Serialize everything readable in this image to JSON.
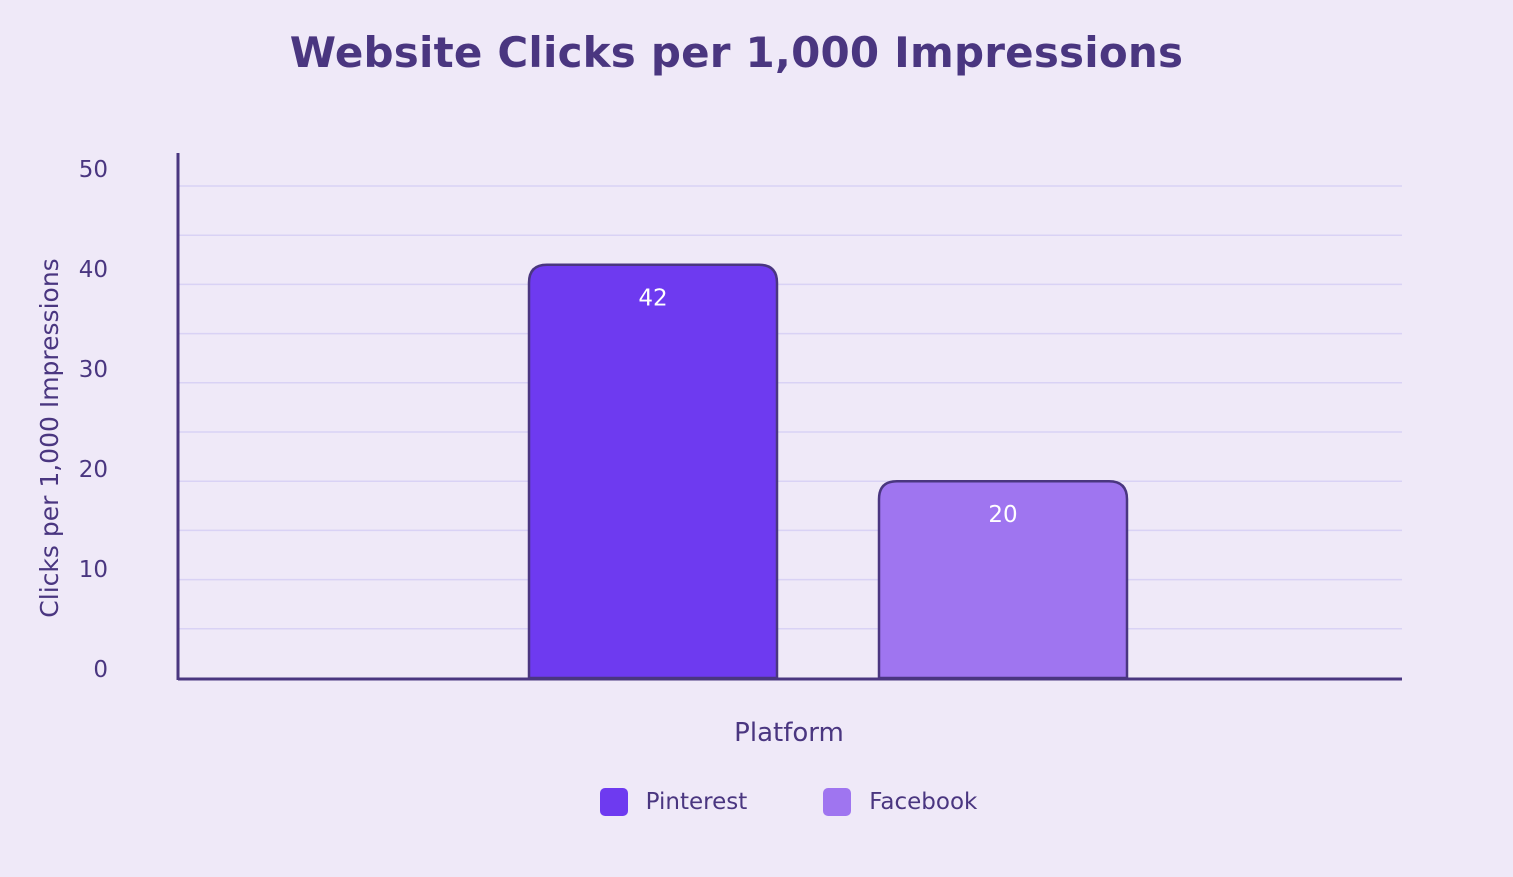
{
  "chart_data": {
    "type": "bar",
    "title": "Website Clicks per 1,000 Impressions",
    "xlabel": "Platform",
    "ylabel": "Clicks per 1,000 Impressions",
    "categories": [
      "Pinterest",
      "Facebook"
    ],
    "series": [
      {
        "values": [
          42,
          20
        ]
      }
    ],
    "data_labels": [
      "42",
      "20"
    ],
    "ylim": [
      0,
      50
    ],
    "y_ticks": [
      0,
      10,
      20,
      30,
      40,
      50
    ],
    "y_tick_labels": [
      "0",
      "10",
      "20",
      "30",
      "40",
      "50"
    ],
    "grid": true,
    "legend": {
      "placement": "bottom",
      "entries": [
        {
          "label": "Pinterest",
          "color": "#6e3af0"
        },
        {
          "label": "Facebook",
          "color": "#9f75f0"
        }
      ]
    },
    "colors": {
      "bars": [
        "#6e3af0",
        "#9f75f0"
      ],
      "bar_stroke": "#4a3680",
      "axis": "#4a3680",
      "grid": "#d9d2f5",
      "text": "#4a3680",
      "data_label": "#ffffff",
      "background": "#efe9f8"
    }
  }
}
